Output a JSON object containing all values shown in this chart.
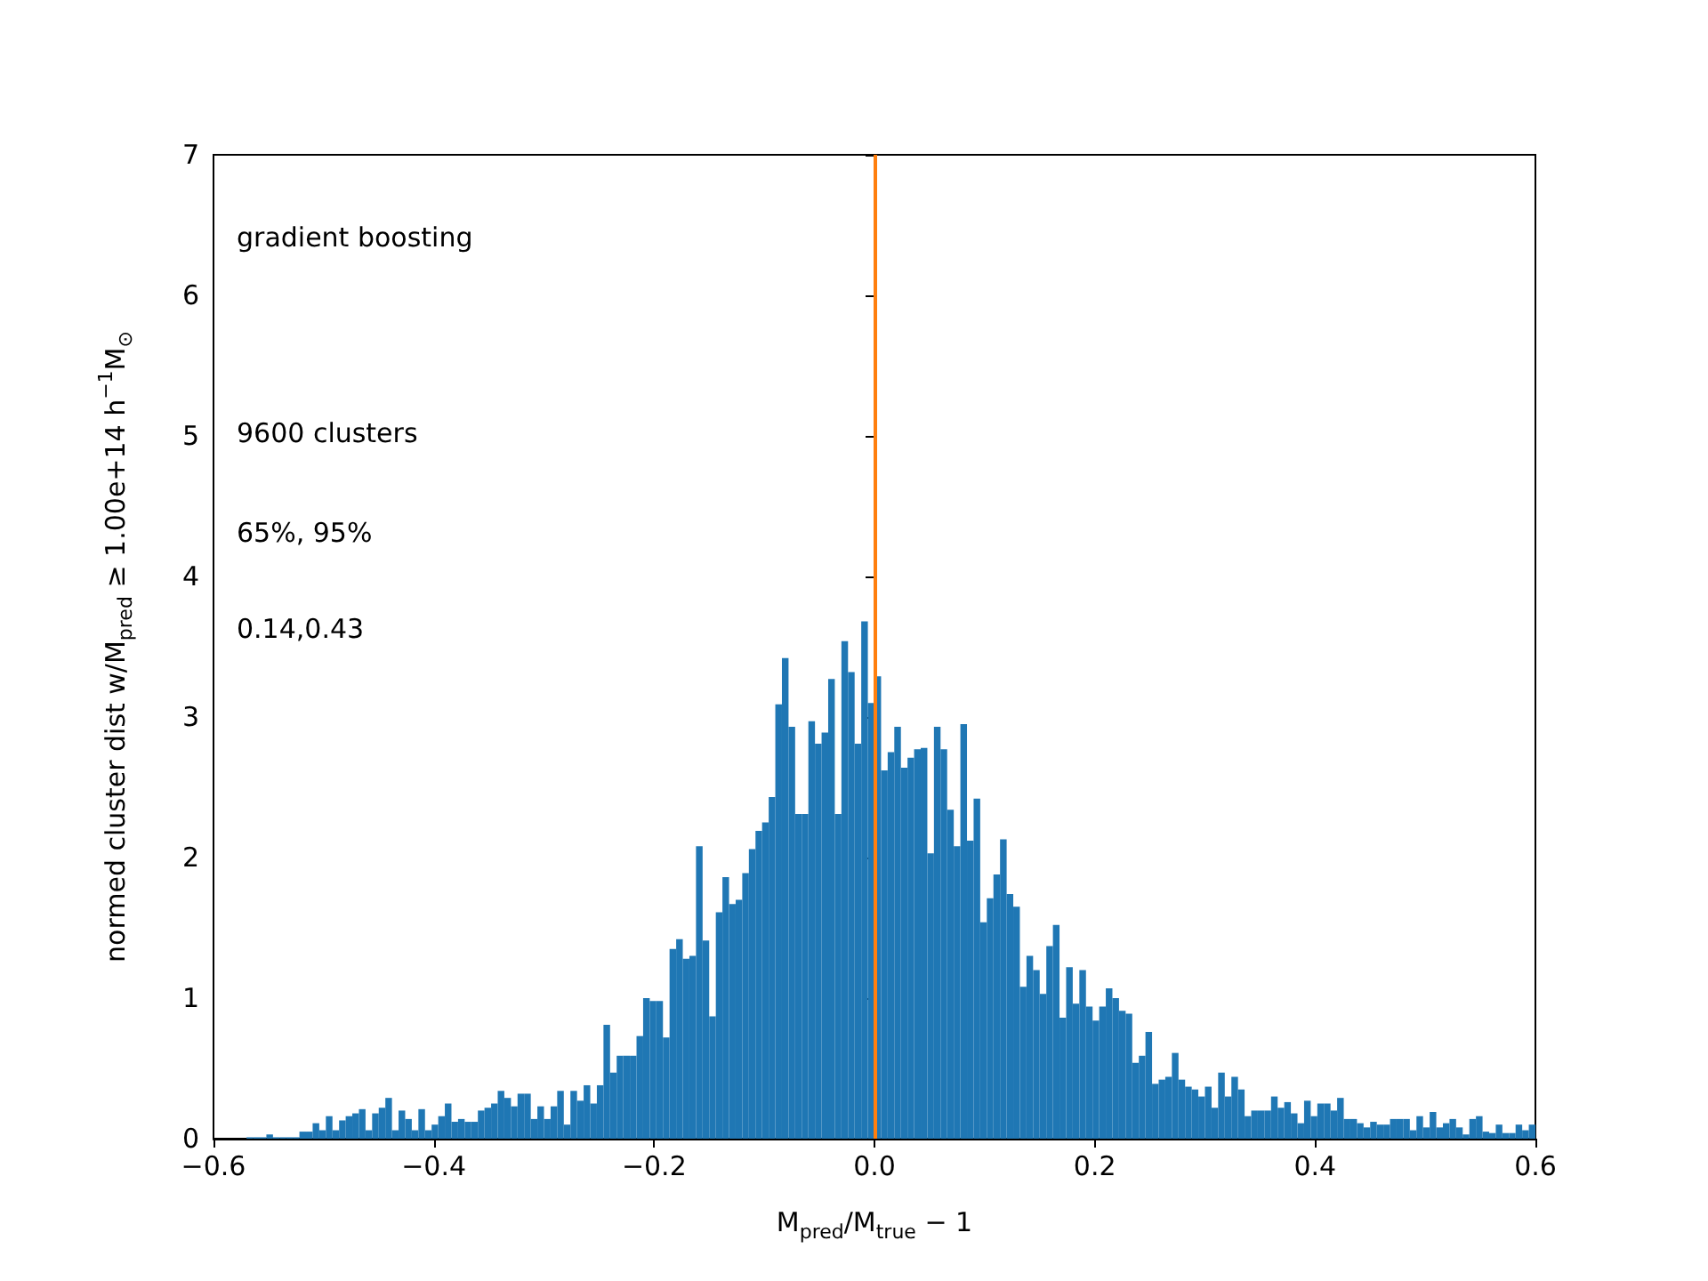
{
  "chart_data": {
    "type": "histogram",
    "xlabel": "M$_{pred}$/M$_{true}$ − 1",
    "ylabel": "normed cluster dist w/M$_{pred}$ ≥ 1.00e+14 h$^{−1}$M$_{⊙}$",
    "color": "#1f77b4",
    "annotations": [
      "gradient boosting",
      "9600 clusters",
      "65%, 95%",
      "0.14,0.43"
    ],
    "bins": [
      -0.57,
      -0.564,
      -0.558,
      -0.552,
      -0.546,
      -0.54,
      -0.534,
      -0.528,
      -0.522,
      -0.516,
      -0.51,
      -0.504,
      -0.498,
      -0.492,
      -0.486,
      -0.48,
      -0.474,
      -0.468,
      -0.462,
      -0.456,
      -0.45,
      -0.444,
      -0.438,
      -0.432,
      -0.426,
      -0.42,
      -0.414,
      -0.408,
      -0.402,
      -0.396,
      -0.39,
      -0.384,
      -0.378,
      -0.372,
      -0.366,
      -0.36,
      -0.354,
      -0.348,
      -0.342,
      -0.336,
      -0.33,
      -0.324,
      -0.318,
      -0.312,
      -0.306,
      -0.3,
      -0.294,
      -0.288,
      -0.282,
      -0.276,
      -0.27,
      -0.264,
      -0.258,
      -0.252,
      -0.246,
      -0.24,
      -0.234,
      -0.228,
      -0.222,
      -0.216,
      -0.21,
      -0.204,
      -0.198,
      -0.192,
      -0.186,
      -0.18,
      -0.174,
      -0.168,
      -0.162,
      -0.156,
      -0.15,
      -0.144,
      -0.138,
      -0.132,
      -0.126,
      -0.12,
      -0.114,
      -0.108,
      -0.102,
      -0.096,
      -0.09,
      -0.084,
      -0.078,
      -0.072,
      -0.066,
      -0.06,
      -0.054,
      -0.048,
      -0.042,
      -0.036,
      -0.03,
      -0.024,
      -0.018,
      -0.012,
      -0.006,
      0,
      0.006,
      0.012,
      0.018,
      0.024,
      0.03,
      0.036,
      0.042,
      0.048,
      0.054,
      0.06,
      0.066,
      0.072,
      0.078,
      0.084,
      0.09,
      0.096,
      0.102,
      0.108,
      0.114,
      0.12,
      0.126,
      0.132,
      0.138,
      0.144,
      0.15,
      0.156,
      0.162,
      0.168,
      0.174,
      0.18,
      0.186,
      0.192,
      0.198,
      0.204,
      0.21,
      0.216,
      0.222,
      0.228,
      0.234,
      0.24,
      0.246,
      0.252,
      0.258,
      0.264,
      0.27,
      0.276,
      0.282,
      0.288,
      0.294,
      0.3,
      0.306,
      0.312,
      0.318,
      0.324,
      0.33,
      0.336,
      0.342,
      0.348,
      0.354,
      0.36,
      0.366,
      0.372,
      0.378,
      0.384,
      0.39,
      0.396,
      0.402,
      0.408,
      0.414,
      0.42,
      0.426,
      0.432,
      0.438,
      0.444,
      0.45,
      0.456,
      0.462,
      0.468,
      0.474,
      0.48,
      0.486,
      0.492,
      0.498,
      0.504,
      0.51,
      0.516,
      0.522,
      0.528,
      0.534,
      0.54,
      0.546,
      0.552,
      0.558,
      0.564,
      0.57,
      0.576,
      0.582,
      0.588,
      0.594,
      0.6
    ],
    "values": [
      0.01,
      0.01,
      0.01,
      0.03,
      0.01,
      0.01,
      0.01,
      0.01,
      0.05,
      0.05,
      0.11,
      0.06,
      0.16,
      0.06,
      0.13,
      0.16,
      0.18,
      0.21,
      0.06,
      0.18,
      0.22,
      0.29,
      0.06,
      0.2,
      0.14,
      0.06,
      0.21,
      0.06,
      0.1,
      0.16,
      0.25,
      0.12,
      0.14,
      0.12,
      0.12,
      0.2,
      0.22,
      0.25,
      0.34,
      0.29,
      0.23,
      0.32,
      0.32,
      0.14,
      0.23,
      0.14,
      0.23,
      0.34,
      0.1,
      0.34,
      0.27,
      0.38,
      0.25,
      0.38,
      0.81,
      0.47,
      0.59,
      0.59,
      0.59,
      0.73,
      1.0,
      0.98,
      0.98,
      0.72,
      1.35,
      1.42,
      1.28,
      1.3,
      2.08,
      1.41,
      0.87,
      1.61,
      1.86,
      1.67,
      1.7,
      1.89,
      2.06,
      2.19,
      2.25,
      2.43,
      3.09,
      3.42,
      2.93,
      2.31,
      2.31,
      2.97,
      2.81,
      2.89,
      3.27,
      2.31,
      3.54,
      3.32,
      2.81,
      3.68,
      3.1,
      3.29,
      2.62,
      2.75,
      2.93,
      2.64,
      2.71,
      2.77,
      2.78,
      2.03,
      2.93,
      2.77,
      2.34,
      2.08,
      2.95,
      2.12,
      2.42,
      1.54,
      1.71,
      1.88,
      2.13,
      1.74,
      1.65,
      1.08,
      1.3,
      1.2,
      1.03,
      1.37,
      1.52,
      0.86,
      1.22,
      0.96,
      1.2,
      0.94,
      0.84,
      0.94,
      1.07,
      1.0,
      0.91,
      0.89,
      0.54,
      0.59,
      0.76,
      0.39,
      0.42,
      0.44,
      0.61,
      0.42,
      0.37,
      0.35,
      0.3,
      0.37,
      0.22,
      0.47,
      0.3,
      0.44,
      0.35,
      0.16,
      0.2,
      0.2,
      0.2,
      0.3,
      0.22,
      0.26,
      0.18,
      0.11,
      0.27,
      0.16,
      0.25,
      0.25,
      0.2,
      0.29,
      0.14,
      0.14,
      0.11,
      0.08,
      0.12,
      0.1,
      0.1,
      0.14,
      0.14,
      0.14,
      0.06,
      0.16,
      0.08,
      0.19,
      0.08,
      0.11,
      0.14,
      0.08,
      0.03,
      0.14,
      0.16,
      0.05,
      0.04,
      0.1,
      0.04,
      0.04,
      0.1,
      0.06,
      0.1
    ],
    "ref_lines": [
      {
        "axis": "x",
        "value": 0,
        "color": "#ff7f0e"
      }
    ],
    "xlim": [
      -0.6,
      0.6
    ],
    "xticks": [
      {
        "value": -0.6,
        "label": "−0.6"
      },
      {
        "value": -0.4,
        "label": "−0.4"
      },
      {
        "value": -0.2,
        "label": "−0.2"
      },
      {
        "value": 0,
        "label": "0.0"
      },
      {
        "value": 0.2,
        "label": "0.2"
      },
      {
        "value": 0.4,
        "label": "0.4"
      },
      {
        "value": 0.6,
        "label": "0.6"
      }
    ],
    "ylim": [
      0,
      7
    ],
    "yticks": [
      0,
      1,
      2,
      3,
      4,
      5,
      6,
      7
    ]
  }
}
